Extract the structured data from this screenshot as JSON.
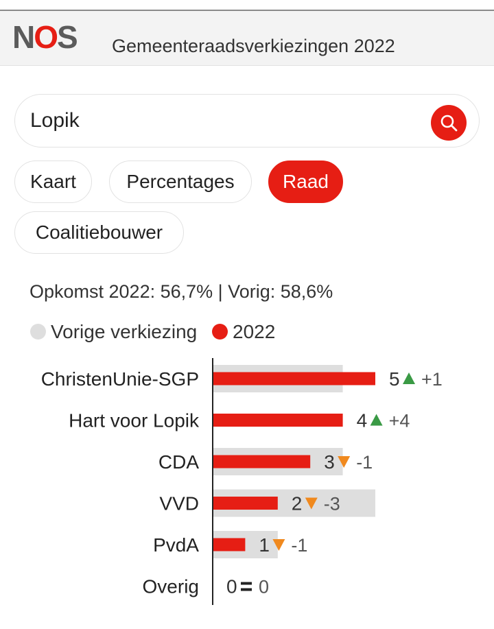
{
  "header": {
    "logo": {
      "n": "N",
      "o": "O",
      "s": "S"
    },
    "title": "Gemeenteraadsverkiezingen 2022"
  },
  "search": {
    "value": "Lopik",
    "icon": "search-icon"
  },
  "tabs": [
    {
      "label": "Kaart",
      "active": false
    },
    {
      "label": "Percentages",
      "active": false
    },
    {
      "label": "Raad",
      "active": true
    },
    {
      "label": "Coalitiebouwer",
      "active": false
    }
  ],
  "turnout": "Opkomst 2022: 56,7% | Vorig: 58,6%",
  "legend": [
    {
      "label": "Vorige verkiezing",
      "color": "#dedede"
    },
    {
      "label": "2022",
      "color": "#e61e14"
    }
  ],
  "colors": {
    "accent": "#e61e14",
    "previous": "#dedede",
    "up": "#3a9a45",
    "down": "#f0891e"
  },
  "chart_data": {
    "type": "bar",
    "orientation": "horizontal",
    "categories": [
      "ChristenUnie-SGP",
      "Hart voor Lopik",
      "CDA",
      "VVD",
      "PvdA",
      "Overig"
    ],
    "series": [
      {
        "name": "Vorige verkiezing",
        "values": [
          4,
          0,
          4,
          5,
          2,
          0
        ]
      },
      {
        "name": "2022",
        "values": [
          5,
          4,
          3,
          2,
          1,
          0
        ]
      }
    ],
    "changes": [
      "+1",
      "+4",
      "-1",
      "-3",
      "-1",
      "0"
    ],
    "change_direction": [
      "up",
      "up",
      "down",
      "down",
      "down",
      "same"
    ],
    "xlim": [
      0,
      5
    ]
  }
}
